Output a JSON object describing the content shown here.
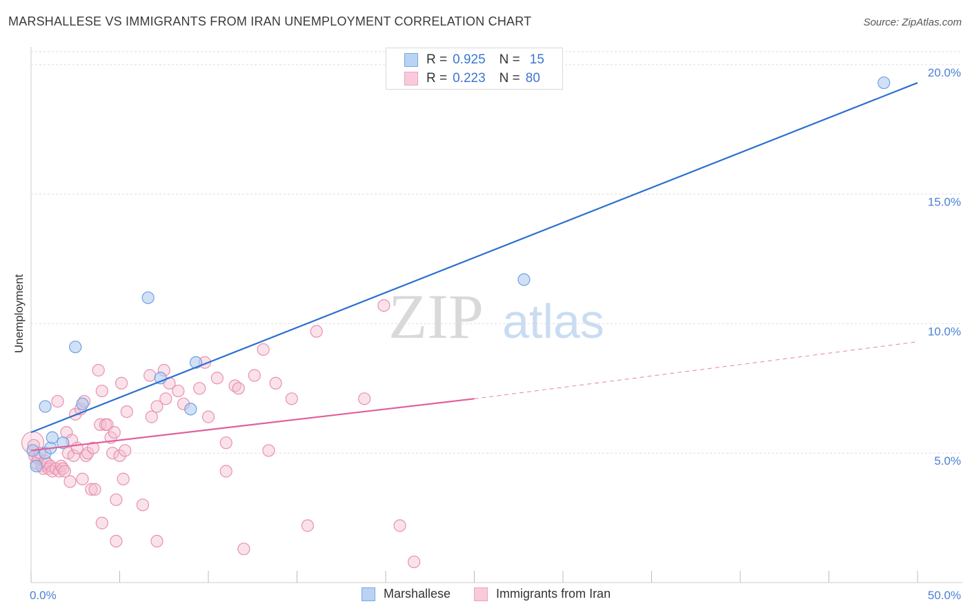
{
  "title": "MARSHALLESE VS IMMIGRANTS FROM IRAN UNEMPLOYMENT CORRELATION CHART",
  "source": "Source: ZipAtlas.com",
  "watermark": {
    "zip": "ZIP",
    "atlas": "atlas"
  },
  "chart_data": {
    "type": "scatter",
    "title": "MARSHALLESE VS IMMIGRANTS FROM IRAN UNEMPLOYMENT CORRELATION CHART",
    "xlabel": "",
    "ylabel": "Unemployment",
    "xlim": [
      0,
      50
    ],
    "ylim": [
      0,
      20.5
    ],
    "x_tick_labels": [
      {
        "value": 0,
        "label": "0.0%"
      },
      {
        "value": 50,
        "label": "50.0%"
      }
    ],
    "x_minor_ticks": [
      0,
      5,
      10,
      15,
      20,
      25,
      30,
      35,
      40,
      45,
      50
    ],
    "y_tick_labels": [
      {
        "value": 5,
        "label": "5.0%"
      },
      {
        "value": 10,
        "label": "10.0%"
      },
      {
        "value": 15,
        "label": "15.0%"
      },
      {
        "value": 20,
        "label": "20.0%"
      }
    ],
    "series": [
      {
        "name": "Marshallese",
        "color": "#6ea0e0",
        "fill": "#a9c8f0",
        "line_color": "#2a6fd0",
        "r": "0.925",
        "n": "15",
        "points": [
          [
            0.1,
            5.1
          ],
          [
            0.3,
            4.5
          ],
          [
            0.8,
            5.0
          ],
          [
            0.8,
            6.8
          ],
          [
            1.1,
            5.2
          ],
          [
            1.2,
            5.6
          ],
          [
            1.8,
            5.4
          ],
          [
            2.5,
            9.1
          ],
          [
            2.9,
            6.9
          ],
          [
            6.6,
            11.0
          ],
          [
            7.3,
            7.9
          ],
          [
            9.0,
            6.7
          ],
          [
            9.3,
            8.5
          ],
          [
            27.8,
            11.7
          ],
          [
            48.1,
            19.3
          ]
        ],
        "trend": {
          "x": [
            0,
            50
          ],
          "y": [
            5.8,
            19.3
          ],
          "dashed_x": [
            50,
            50
          ]
        }
      },
      {
        "name": "Immigrants from Iran",
        "color": "#e890b0",
        "fill": "#f5bfd1",
        "line_color": "#e0609a",
        "r": "0.223",
        "n": "80",
        "points": [
          [
            0.1,
            5.4
          ],
          [
            0.2,
            4.9
          ],
          [
            0.3,
            4.6
          ],
          [
            0.4,
            4.8
          ],
          [
            0.5,
            5.0
          ],
          [
            0.6,
            4.5
          ],
          [
            0.7,
            4.4
          ],
          [
            0.8,
            4.7
          ],
          [
            0.9,
            4.6
          ],
          [
            1.0,
            4.4
          ],
          [
            1.1,
            4.5
          ],
          [
            1.2,
            4.3
          ],
          [
            1.4,
            4.4
          ],
          [
            1.5,
            7.0
          ],
          [
            1.6,
            4.3
          ],
          [
            1.7,
            4.5
          ],
          [
            1.8,
            4.4
          ],
          [
            1.9,
            4.3
          ],
          [
            2.0,
            5.8
          ],
          [
            2.1,
            5.0
          ],
          [
            2.2,
            3.9
          ],
          [
            2.3,
            5.5
          ],
          [
            2.4,
            4.9
          ],
          [
            2.5,
            6.5
          ],
          [
            2.6,
            5.2
          ],
          [
            2.8,
            6.7
          ],
          [
            2.9,
            4.0
          ],
          [
            3.0,
            7.0
          ],
          [
            3.1,
            4.9
          ],
          [
            3.2,
            5.0
          ],
          [
            3.4,
            3.6
          ],
          [
            3.5,
            5.2
          ],
          [
            3.6,
            3.6
          ],
          [
            3.8,
            8.2
          ],
          [
            3.9,
            6.1
          ],
          [
            4.0,
            7.4
          ],
          [
            4.0,
            2.3
          ],
          [
            4.2,
            6.1
          ],
          [
            4.3,
            6.1
          ],
          [
            4.5,
            5.6
          ],
          [
            4.6,
            5.0
          ],
          [
            4.7,
            5.8
          ],
          [
            4.8,
            3.2
          ],
          [
            4.8,
            1.6
          ],
          [
            5.0,
            4.9
          ],
          [
            5.1,
            7.7
          ],
          [
            5.2,
            4.0
          ],
          [
            5.3,
            5.1
          ],
          [
            5.4,
            6.6
          ],
          [
            6.3,
            3.0
          ],
          [
            6.7,
            8.0
          ],
          [
            6.8,
            6.4
          ],
          [
            7.1,
            6.8
          ],
          [
            7.1,
            1.6
          ],
          [
            7.5,
            8.2
          ],
          [
            7.6,
            7.1
          ],
          [
            7.8,
            7.7
          ],
          [
            8.3,
            7.4
          ],
          [
            8.6,
            6.9
          ],
          [
            9.5,
            7.5
          ],
          [
            9.8,
            8.5
          ],
          [
            10.0,
            6.4
          ],
          [
            10.5,
            7.9
          ],
          [
            11.0,
            4.3
          ],
          [
            11.0,
            5.4
          ],
          [
            11.5,
            7.6
          ],
          [
            11.7,
            7.5
          ],
          [
            12.0,
            1.3
          ],
          [
            12.6,
            8.0
          ],
          [
            13.1,
            9.0
          ],
          [
            13.4,
            5.1
          ],
          [
            13.8,
            7.7
          ],
          [
            14.7,
            7.1
          ],
          [
            15.6,
            2.2
          ],
          [
            16.1,
            9.7
          ],
          [
            18.8,
            7.1
          ],
          [
            19.9,
            10.7
          ],
          [
            20.8,
            2.2
          ],
          [
            21.6,
            0.8
          ],
          [
            0.15,
            5.3
          ]
        ],
        "trend": {
          "x": [
            0,
            25
          ],
          "y": [
            5.1,
            7.1
          ],
          "dashed_x": [
            25,
            50
          ],
          "dashed_y": [
            7.1,
            9.3
          ]
        }
      }
    ],
    "legend_position": "top-center"
  },
  "legend": {
    "r_label": "R =",
    "n_label": "N =",
    "rows": [
      {
        "r": "0.925",
        "n": "15"
      },
      {
        "r": "0.223",
        "n": "80"
      }
    ]
  },
  "bottom_legend": [
    {
      "label": "Marshallese"
    },
    {
      "label": "Immigrants from Iran"
    }
  ]
}
